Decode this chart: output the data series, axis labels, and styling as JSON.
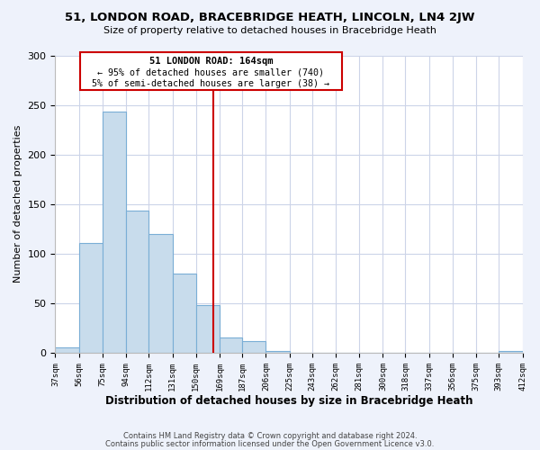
{
  "title": "51, LONDON ROAD, BRACEBRIDGE HEATH, LINCOLN, LN4 2JW",
  "subtitle": "Size of property relative to detached houses in Bracebridge Heath",
  "xlabel": "Distribution of detached houses by size in Bracebridge Heath",
  "ylabel": "Number of detached properties",
  "bar_edges": [
    37,
    56,
    75,
    94,
    112,
    131,
    150,
    169,
    187,
    206,
    225,
    243,
    262,
    281,
    300,
    318,
    337,
    356,
    375,
    393,
    412
  ],
  "bar_heights": [
    5,
    111,
    243,
    143,
    120,
    80,
    48,
    15,
    12,
    2,
    0,
    0,
    0,
    0,
    0,
    0,
    0,
    0,
    0,
    2
  ],
  "bar_color": "#c8dcec",
  "bar_edge_color": "#7aaed6",
  "reference_line_x": 164,
  "reference_line_color": "#cc0000",
  "annotation_title": "51 LONDON ROAD: 164sqm",
  "annotation_line1": "← 95% of detached houses are smaller (740)",
  "annotation_line2": "5% of semi-detached houses are larger (38) →",
  "annotation_box_color": "#ffffff",
  "annotation_box_edge_color": "#cc0000",
  "xlim": [
    37,
    412
  ],
  "ylim": [
    0,
    300
  ],
  "yticks": [
    0,
    50,
    100,
    150,
    200,
    250,
    300
  ],
  "tick_labels": [
    "37sqm",
    "56sqm",
    "75sqm",
    "94sqm",
    "112sqm",
    "131sqm",
    "150sqm",
    "169sqm",
    "187sqm",
    "206sqm",
    "225sqm",
    "243sqm",
    "262sqm",
    "281sqm",
    "300sqm",
    "318sqm",
    "337sqm",
    "356sqm",
    "375sqm",
    "393sqm",
    "412sqm"
  ],
  "footer1": "Contains HM Land Registry data © Crown copyright and database right 2024.",
  "footer2": "Contains public sector information licensed under the Open Government Licence v3.0.",
  "bg_color": "#eef2fb",
  "plot_bg_color": "#ffffff",
  "grid_color": "#ccd4e8"
}
